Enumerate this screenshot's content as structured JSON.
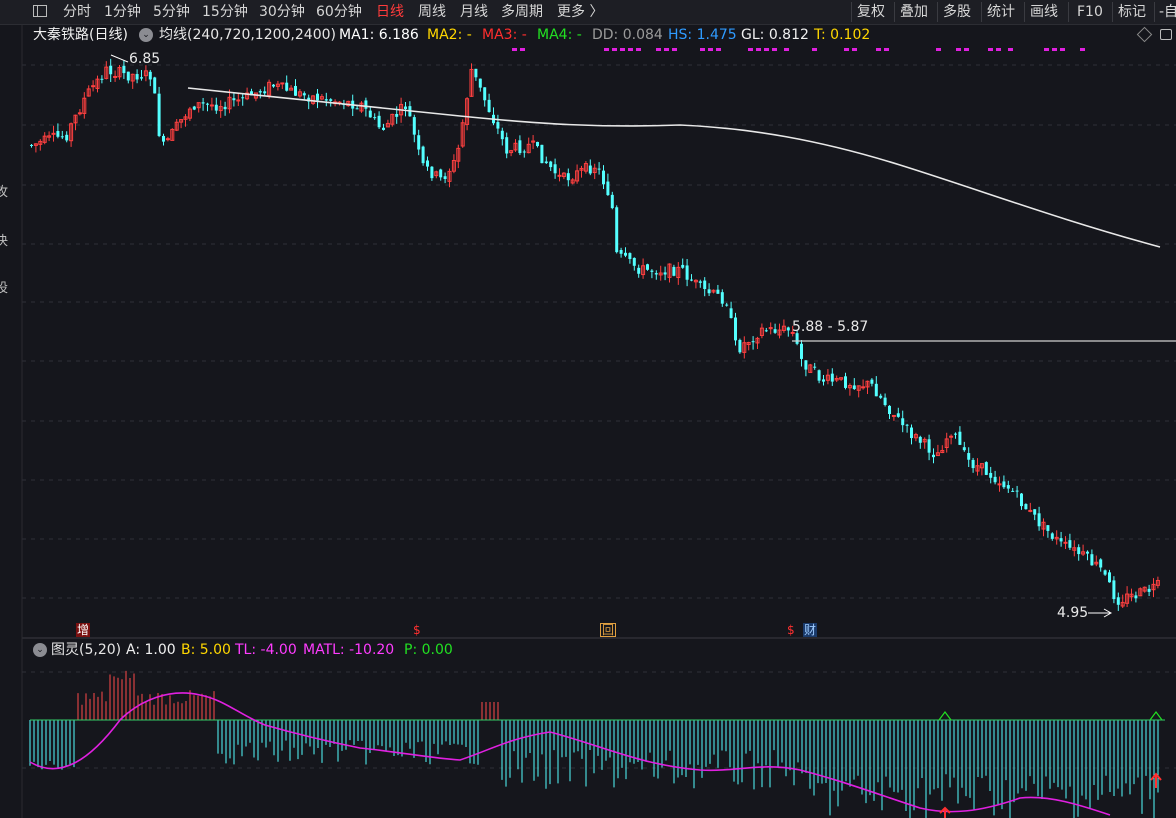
{
  "toolbar": {
    "periods": [
      "分时",
      "1分钟",
      "5分钟",
      "15分钟",
      "30分钟",
      "60分钟",
      "日线",
      "周线",
      "月线",
      "多周期",
      "更多 〉"
    ],
    "active_period": "日线",
    "right_tools": [
      "复权",
      "叠加",
      "多股",
      "统计",
      "画线",
      "F10",
      "标记",
      "-自"
    ]
  },
  "left_strip": [
    "攻",
    "决",
    "设"
  ],
  "main_info": {
    "stock": "大秦铁路(日线)",
    "indicator": "均线(240,720,1200,2400)",
    "ma1": "MA1: 6.186",
    "ma2": "MA2: -",
    "ma3": "MA3: -",
    "ma4": "MA4: -",
    "dd": "DD: 0.084",
    "hs": "HS: 1.475",
    "gl": "GL: 0.812",
    "t": "T: 0.102"
  },
  "annotations": {
    "high": "6.85",
    "low": "4.95",
    "range": "5.88 - 5.87"
  },
  "markers": [
    {
      "text": "增",
      "kind": "red"
    },
    {
      "text": "$",
      "kind": "red-plain"
    },
    {
      "text": "回",
      "kind": "orange"
    },
    {
      "text": "$",
      "kind": "red-plain"
    },
    {
      "text": "财",
      "kind": "blue"
    }
  ],
  "sub_info": {
    "indicator": "图灵(5,20)",
    "a": "A: 1.00",
    "b": "B: 5.00",
    "tl": "TL: -4.00",
    "matl": "MATL: -10.20",
    "p": "P: 0.00"
  },
  "colors": {
    "up": "#ff4040",
    "down": "#54ffff",
    "ma_line": "#ffffff",
    "sub_line": "#ff00ff",
    "active": "#ff3b3b"
  }
}
